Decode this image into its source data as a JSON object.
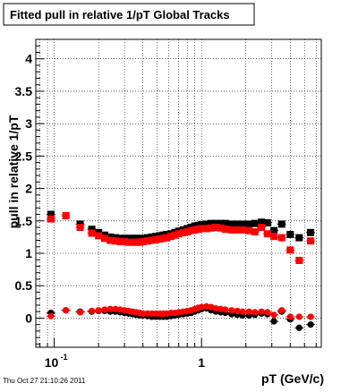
{
  "title": "Fitted pull in relative 1/pT  Global Tracks",
  "timestamp": "Thu Oct 27 21:10:26 2011",
  "chart_data": {
    "type": "scatter",
    "title": "Fitted pull in relative 1/pT  Global Tracks",
    "xlabel": "pT (GeV/c)",
    "ylabel": "pull in relative 1/pT",
    "xscale": "log",
    "xlim": [
      0.075,
      6.5
    ],
    "ylim": [
      -0.45,
      4.3
    ],
    "grid": true,
    "x_ticks": [
      {
        "value": 0.1,
        "base": "10",
        "exp": "-1"
      },
      {
        "value": 1,
        "label": "1"
      }
    ],
    "y_ticks": [
      {
        "value": 0,
        "label": "0"
      },
      {
        "value": 0.5,
        "label": "0.5"
      },
      {
        "value": 1,
        "label": "1"
      },
      {
        "value": 1.5,
        "label": "1.5"
      },
      {
        "value": 2,
        "label": "2"
      },
      {
        "value": 2.5,
        "label": "2.5"
      },
      {
        "value": 3,
        "label": "3"
      },
      {
        "value": 3.5,
        "label": "3.5"
      },
      {
        "value": 4,
        "label": "4"
      }
    ],
    "series": [
      {
        "color": "#000000",
        "marker": "square",
        "x": [
          0.095,
          0.15,
          0.18,
          0.2,
          0.22,
          0.24,
          0.26,
          0.28,
          0.3,
          0.32,
          0.34,
          0.36,
          0.38,
          0.4,
          0.43,
          0.46,
          0.49,
          0.52,
          0.55,
          0.58,
          0.62,
          0.66,
          0.7,
          0.75,
          0.8,
          0.85,
          0.9,
          0.95,
          1.0,
          1.08,
          1.16,
          1.25,
          1.35,
          1.45,
          1.6,
          1.75,
          1.9,
          2.1,
          2.3,
          2.55,
          2.8,
          3.1,
          3.5,
          4.0,
          4.6,
          5.5
        ],
        "y": [
          1.6,
          1.45,
          1.37,
          1.32,
          1.28,
          1.25,
          1.24,
          1.23,
          1.23,
          1.23,
          1.23,
          1.23,
          1.23,
          1.23,
          1.24,
          1.25,
          1.26,
          1.27,
          1.28,
          1.29,
          1.3,
          1.32,
          1.34,
          1.36,
          1.38,
          1.4,
          1.42,
          1.43,
          1.44,
          1.45,
          1.46,
          1.46,
          1.46,
          1.46,
          1.45,
          1.45,
          1.45,
          1.45,
          1.46,
          1.48,
          1.47,
          1.35,
          1.45,
          1.29,
          1.24,
          1.32
        ]
      },
      {
        "color": "#ff0000",
        "marker": "square",
        "x": [
          0.095,
          0.12,
          0.15,
          0.18,
          0.2,
          0.22,
          0.24,
          0.26,
          0.28,
          0.3,
          0.32,
          0.34,
          0.36,
          0.38,
          0.4,
          0.43,
          0.46,
          0.49,
          0.52,
          0.55,
          0.58,
          0.62,
          0.66,
          0.7,
          0.75,
          0.8,
          0.85,
          0.9,
          0.95,
          1.0,
          1.08,
          1.16,
          1.25,
          1.35,
          1.45,
          1.6,
          1.75,
          1.9,
          2.1,
          2.3,
          2.55,
          2.8,
          3.1,
          3.5,
          4.0,
          4.6,
          5.5
        ],
        "y": [
          1.53,
          1.58,
          1.4,
          1.31,
          1.27,
          1.23,
          1.2,
          1.19,
          1.18,
          1.18,
          1.17,
          1.17,
          1.17,
          1.17,
          1.18,
          1.19,
          1.2,
          1.21,
          1.22,
          1.23,
          1.24,
          1.26,
          1.28,
          1.3,
          1.32,
          1.33,
          1.35,
          1.36,
          1.37,
          1.38,
          1.38,
          1.39,
          1.4,
          1.39,
          1.37,
          1.36,
          1.36,
          1.36,
          1.35,
          1.33,
          1.4,
          1.3,
          1.26,
          1.24,
          1.05,
          0.89,
          1.19
        ]
      },
      {
        "color": "#000000",
        "marker": "circle",
        "x": [
          0.095,
          0.12,
          0.15,
          0.18,
          0.2,
          0.22,
          0.24,
          0.26,
          0.28,
          0.3,
          0.32,
          0.34,
          0.36,
          0.38,
          0.4,
          0.43,
          0.46,
          0.49,
          0.52,
          0.55,
          0.58,
          0.62,
          0.66,
          0.7,
          0.75,
          0.8,
          0.85,
          0.9,
          0.95,
          1.0,
          1.08,
          1.16,
          1.25,
          1.35,
          1.45,
          1.6,
          1.75,
          1.9,
          2.1,
          2.3,
          2.55,
          2.8,
          3.1,
          3.5,
          4.0,
          4.6,
          5.5
        ],
        "y": [
          0.08,
          0.12,
          0.1,
          0.1,
          0.11,
          0.11,
          0.1,
          0.1,
          0.09,
          0.08,
          0.07,
          0.06,
          0.05,
          0.04,
          0.04,
          0.03,
          0.02,
          0.02,
          0.02,
          0.02,
          0.02,
          0.03,
          0.04,
          0.05,
          0.06,
          0.07,
          0.08,
          0.1,
          0.12,
          0.14,
          0.15,
          0.12,
          0.1,
          0.09,
          0.08,
          0.06,
          0.05,
          0.04,
          0.04,
          0.05,
          0.07,
          0.06,
          -0.05,
          0.1,
          -0.02,
          -0.15,
          -0.1
        ]
      },
      {
        "color": "#ff0000",
        "marker": "circle",
        "x": [
          0.095,
          0.12,
          0.15,
          0.18,
          0.2,
          0.22,
          0.24,
          0.26,
          0.28,
          0.3,
          0.32,
          0.34,
          0.36,
          0.38,
          0.4,
          0.43,
          0.46,
          0.49,
          0.52,
          0.55,
          0.58,
          0.62,
          0.66,
          0.7,
          0.75,
          0.8,
          0.85,
          0.9,
          0.95,
          1.0,
          1.08,
          1.16,
          1.25,
          1.35,
          1.45,
          1.6,
          1.75,
          1.9,
          2.1,
          2.3,
          2.55,
          2.8,
          3.1,
          3.5,
          4.0,
          4.6,
          5.5
        ],
        "y": [
          0.03,
          0.12,
          0.09,
          0.11,
          0.12,
          0.13,
          0.14,
          0.14,
          0.13,
          0.12,
          0.11,
          0.1,
          0.09,
          0.08,
          0.07,
          0.07,
          0.07,
          0.07,
          0.07,
          0.07,
          0.07,
          0.08,
          0.08,
          0.09,
          0.1,
          0.11,
          0.12,
          0.14,
          0.16,
          0.17,
          0.18,
          0.17,
          0.15,
          0.14,
          0.13,
          0.12,
          0.11,
          0.1,
          0.1,
          0.09,
          0.1,
          0.09,
          0.05,
          0.12,
          0.02,
          0.02,
          0.02
        ]
      }
    ]
  }
}
